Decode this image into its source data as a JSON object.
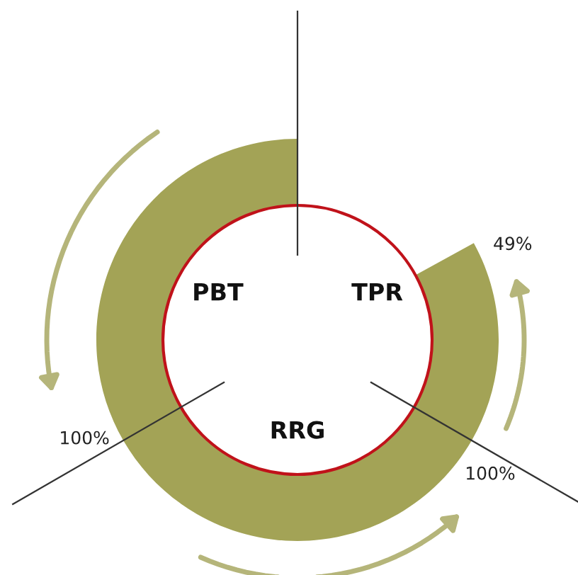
{
  "chart_data": {
    "type": "other",
    "categories": [
      "TPR",
      "RRG",
      "PBT"
    ],
    "values": [
      49,
      100,
      100
    ],
    "value_labels": [
      "49%",
      "100%",
      "100%"
    ],
    "color": "#a3a356"
  }
}
